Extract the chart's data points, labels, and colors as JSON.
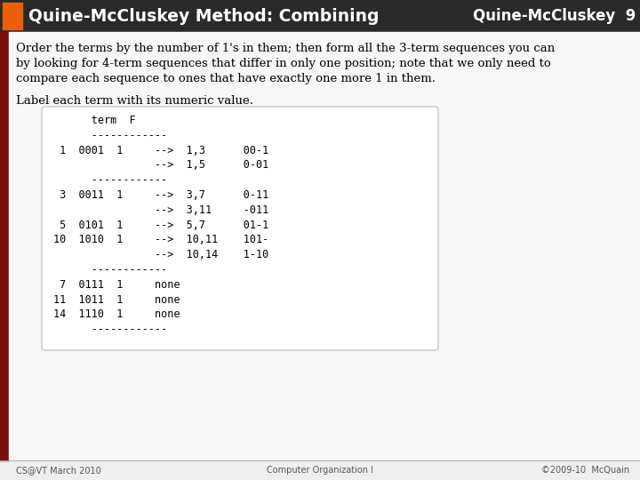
{
  "title_left": "Quine-McCluskey Method: Combining",
  "title_right": "Quine-McCluskey  9",
  "orange_rect_color": "#E8610A",
  "dark_red_color": "#7B1010",
  "title_bg": "#2A2A2A",
  "slide_bg": "#EFEFEF",
  "content_bg": "#F7F7F7",
  "box_bg": "#FFFFFF",
  "box_border": "#BBBBBB",
  "para1": "Order the terms by the number of 1's in them; then form all the 3-term sequences you can\nby looking for 4-term sequences that differ in only one position; note that we only need to\ncompare each sequence to ones that have exactly one more 1 in them.",
  "para2": "Label each term with its numeric value.",
  "mono_lines": [
    "      term  F",
    "      ------------",
    " 1  0001  1     -->  1,3      00-1",
    "                -->  1,5      0-01",
    "      ------------",
    " 3  0011  1     -->  3,7      0-11",
    "                -->  3,11     -011",
    " 5  0101  1     -->  5,7      01-1",
    "10  1010  1     -->  10,11    101-",
    "                -->  10,14    1-10",
    "      ------------",
    " 7  0111  1     none",
    "11  1011  1     none",
    "14  1110  1     none",
    "      ------------"
  ],
  "footer_left": "CS@VT March 2010",
  "footer_center": "Computer Organization I",
  "footer_right": "©2009-10  McQuain"
}
